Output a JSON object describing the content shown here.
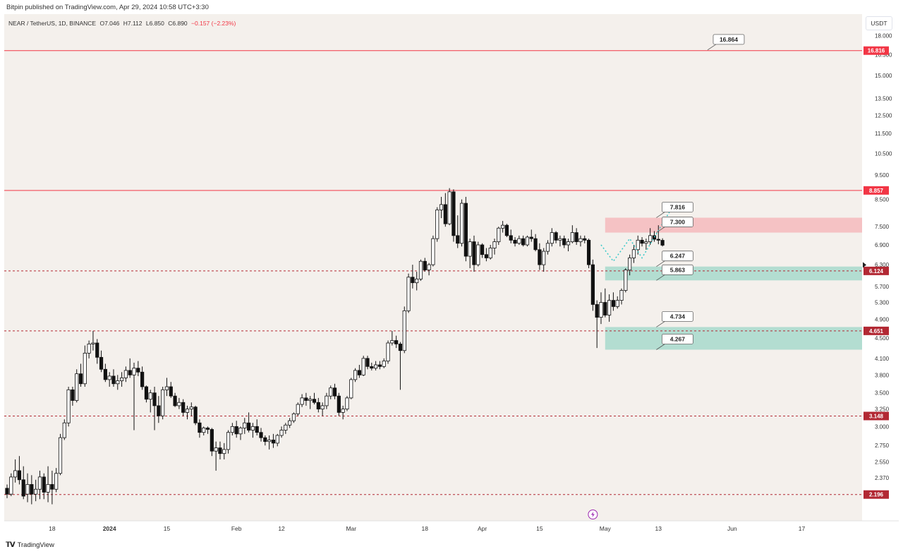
{
  "header": {
    "publish_text": "Bitpin published on TradingView.com, Apr 29, 2024 10:58 UTC+3:30"
  },
  "symbol": {
    "name": "NEAR / TetherUS, 1D, BINANCE",
    "open": "O7.046",
    "high": "H7.112",
    "low": "L6.850",
    "close": "C6.890",
    "change": "−0.157 (−2.23%)",
    "change_color": "#f23645"
  },
  "currency_button": "USDT",
  "footer": {
    "brand": "TradingView",
    "logo_icon": "tradingview-logo-icon"
  },
  "colors": {
    "background": "#f4f0ec",
    "red_line": "#f23645",
    "red_label": "#f23645",
    "dark_red_label": "#b22833",
    "sell_zone": "#f5c2c4",
    "buy_zone": "#b3ddd1",
    "projection": "#36c8c8",
    "candle": "#111111"
  },
  "chart_data": {
    "type": "candlestick",
    "title": "NEAR / TetherUS, 1D, BINANCE",
    "yscale": "log",
    "ylim": [
      2.05,
      19.0
    ],
    "x_tick_labels": [
      "18",
      "2024",
      "15",
      "Feb",
      "12",
      "Mar",
      "18",
      "Apr",
      "15",
      "May",
      "13",
      "Jun",
      "17"
    ],
    "x_tick_days": [
      0,
      14,
      28,
      45,
      56,
      73,
      91,
      105,
      119,
      135,
      148,
      166,
      183
    ],
    "x_range_days": [
      -11,
      196
    ],
    "y_tick_labels": [
      "18.000",
      "16.500",
      "15.000",
      "13.500",
      "12.500",
      "11.500",
      "10.500",
      "9.500",
      "8.500",
      "7.500",
      "6.900",
      "6.300",
      "5.700",
      "5.300",
      "4.900",
      "4.500",
      "4.100",
      "3.800",
      "3.500",
      "3.250",
      "3.000",
      "2.750",
      "2.550",
      "2.370"
    ],
    "horizontal_levels": [
      {
        "label": "16.816",
        "style": "solid",
        "color": "#f23645"
      },
      {
        "label": "8.857",
        "style": "solid",
        "color": "#f23645"
      },
      {
        "label": "6.124",
        "style": "dashed",
        "color": "#b22833"
      },
      {
        "label": "4.651",
        "style": "dashed",
        "color": "#b22833"
      },
      {
        "label": "3.148",
        "style": "dashed",
        "color": "#b22833"
      },
      {
        "label": "2.196",
        "style": "dashed",
        "color": "#b22833"
      }
    ],
    "zones": [
      {
        "type": "sell",
        "top": 7.816,
        "bottom": 7.3,
        "top_label": "7.816",
        "bottom_label": "7.300",
        "start_day": 135
      },
      {
        "type": "buy",
        "top": 6.247,
        "bottom": 5.863,
        "top_label": "6.247",
        "bottom_label": "5.863",
        "start_day": 135
      },
      {
        "type": "buy",
        "top": 4.734,
        "bottom": 4.267,
        "top_label": "4.734",
        "bottom_label": "4.267",
        "start_day": 135
      }
    ],
    "callouts": [
      {
        "label": "16.864",
        "value": 16.864,
        "day": 160
      }
    ],
    "projection": [
      {
        "day": 134,
        "value": 6.9
      },
      {
        "day": 137,
        "value": 6.4
      },
      {
        "day": 141,
        "value": 7.1
      },
      {
        "day": 144,
        "value": 6.5
      },
      {
        "day": 151,
        "value": 8.1
      }
    ],
    "last_price_marker_value": 6.89,
    "candles": [
      [
        -11,
        2.26,
        2.3,
        2.16,
        2.2
      ],
      [
        -10,
        2.2,
        2.42,
        2.18,
        2.38
      ],
      [
        -9,
        2.38,
        2.58,
        2.32,
        2.45
      ],
      [
        -8,
        2.45,
        2.62,
        2.3,
        2.35
      ],
      [
        -7,
        2.35,
        2.5,
        2.15,
        2.18
      ],
      [
        -6,
        2.2,
        2.42,
        2.12,
        2.3
      ],
      [
        -5,
        2.3,
        2.4,
        2.1,
        2.2
      ],
      [
        -4,
        2.2,
        2.35,
        2.13,
        2.25
      ],
      [
        -3,
        2.25,
        2.45,
        2.15,
        2.38
      ],
      [
        -2,
        2.38,
        2.42,
        2.15,
        2.22
      ],
      [
        -1,
        2.22,
        2.5,
        2.12,
        2.3
      ],
      [
        0,
        2.3,
        2.45,
        2.1,
        2.25
      ],
      [
        1,
        2.25,
        2.48,
        2.22,
        2.42
      ],
      [
        2,
        2.42,
        2.9,
        2.4,
        2.85
      ],
      [
        3,
        2.85,
        3.1,
        2.82,
        3.05
      ],
      [
        4,
        3.05,
        3.6,
        3.0,
        3.55
      ],
      [
        5,
        3.55,
        3.6,
        3.3,
        3.38
      ],
      [
        6,
        3.38,
        3.9,
        3.35,
        3.82
      ],
      [
        7,
        3.82,
        4.0,
        3.6,
        3.65
      ],
      [
        8,
        3.65,
        4.35,
        3.6,
        4.2
      ],
      [
        9,
        4.2,
        4.45,
        4.1,
        4.38
      ],
      [
        10,
        4.38,
        4.65,
        4.25,
        4.4
      ],
      [
        11,
        4.4,
        4.48,
        4.0,
        4.12
      ],
      [
        12,
        4.12,
        4.25,
        3.85,
        3.9
      ],
      [
        13,
        3.9,
        4.0,
        3.68,
        3.72
      ],
      [
        14,
        3.72,
        3.85,
        3.6,
        3.78
      ],
      [
        15,
        3.78,
        3.9,
        3.6,
        3.65
      ],
      [
        16,
        3.65,
        3.8,
        3.55,
        3.7
      ],
      [
        17,
        3.7,
        3.85,
        3.6,
        3.75
      ],
      [
        18,
        3.75,
        3.95,
        3.68,
        3.88
      ],
      [
        19,
        3.88,
        4.1,
        3.75,
        3.8
      ],
      [
        20,
        3.8,
        4.02,
        2.95,
        3.92
      ],
      [
        21,
        3.92,
        4.05,
        3.78,
        3.85
      ],
      [
        22,
        3.85,
        3.95,
        3.55,
        3.6
      ],
      [
        23,
        3.6,
        3.62,
        3.35,
        3.4
      ],
      [
        24,
        3.4,
        3.55,
        3.2,
        3.5
      ],
      [
        25,
        3.5,
        3.6,
        2.95,
        3.3
      ],
      [
        26,
        3.3,
        3.45,
        3.05,
        3.15
      ],
      [
        27,
        3.15,
        3.6,
        3.1,
        3.55
      ],
      [
        28,
        3.55,
        3.75,
        3.45,
        3.6
      ],
      [
        29,
        3.6,
        3.68,
        3.42,
        3.45
      ],
      [
        30,
        3.45,
        3.5,
        3.28,
        3.3
      ],
      [
        31,
        3.3,
        3.42,
        3.25,
        3.35
      ],
      [
        32,
        3.35,
        3.4,
        3.15,
        3.2
      ],
      [
        33,
        3.2,
        3.3,
        3.1,
        3.25
      ],
      [
        34,
        3.25,
        3.35,
        3.15,
        3.28
      ],
      [
        35,
        3.28,
        3.3,
        3.02,
        3.05
      ],
      [
        36,
        3.05,
        3.1,
        2.85,
        2.92
      ],
      [
        37,
        2.92,
        3.0,
        2.88,
        2.98
      ],
      [
        38,
        2.98,
        3.0,
        2.9,
        2.96
      ],
      [
        39,
        2.96,
        2.98,
        2.62,
        2.68
      ],
      [
        40,
        2.68,
        2.8,
        2.45,
        2.72
      ],
      [
        41,
        2.72,
        2.8,
        2.58,
        2.65
      ],
      [
        42,
        2.65,
        2.78,
        2.58,
        2.7
      ],
      [
        43,
        2.7,
        2.95,
        2.65,
        2.92
      ],
      [
        44,
        2.92,
        3.05,
        2.88,
        3.0
      ],
      [
        45,
        3.0,
        3.08,
        2.85,
        2.9
      ],
      [
        46,
        2.9,
        3.0,
        2.82,
        2.98
      ],
      [
        47,
        2.98,
        3.12,
        2.9,
        3.05
      ],
      [
        48,
        3.05,
        3.2,
        2.92,
        2.95
      ],
      [
        49,
        2.95,
        3.05,
        2.85,
        3.0
      ],
      [
        50,
        3.0,
        3.1,
        2.88,
        2.92
      ],
      [
        51,
        2.92,
        2.98,
        2.8,
        2.85
      ],
      [
        52,
        2.85,
        2.88,
        2.75,
        2.8
      ],
      [
        53,
        2.8,
        2.88,
        2.7,
        2.82
      ],
      [
        54,
        2.82,
        2.9,
        2.72,
        2.78
      ],
      [
        55,
        2.78,
        2.9,
        2.74,
        2.88
      ],
      [
        56,
        2.88,
        3.0,
        2.85,
        2.95
      ],
      [
        57,
        2.95,
        3.05,
        2.9,
        3.02
      ],
      [
        58,
        3.02,
        3.12,
        2.98,
        3.08
      ],
      [
        59,
        3.08,
        3.2,
        3.05,
        3.18
      ],
      [
        60,
        3.18,
        3.35,
        3.15,
        3.32
      ],
      [
        61,
        3.32,
        3.48,
        3.28,
        3.42
      ],
      [
        62,
        3.42,
        3.5,
        3.3,
        3.38
      ],
      [
        63,
        3.38,
        3.45,
        3.25,
        3.4
      ],
      [
        64,
        3.4,
        3.5,
        3.32,
        3.35
      ],
      [
        65,
        3.35,
        3.42,
        3.2,
        3.25
      ],
      [
        66,
        3.25,
        3.35,
        3.15,
        3.3
      ],
      [
        67,
        3.3,
        3.5,
        3.25,
        3.45
      ],
      [
        68,
        3.45,
        3.62,
        3.4,
        3.58
      ],
      [
        69,
        3.58,
        3.65,
        3.4,
        3.45
      ],
      [
        70,
        3.45,
        3.5,
        3.15,
        3.2
      ],
      [
        71,
        3.2,
        3.3,
        3.1,
        3.25
      ],
      [
        72,
        3.25,
        3.45,
        3.22,
        3.42
      ],
      [
        73,
        3.42,
        3.75,
        3.4,
        3.72
      ],
      [
        74,
        3.72,
        3.92,
        3.68,
        3.88
      ],
      [
        75,
        3.88,
        3.98,
        3.75,
        3.8
      ],
      [
        76,
        3.8,
        4.15,
        3.78,
        4.1
      ],
      [
        77,
        4.1,
        4.15,
        3.9,
        3.95
      ],
      [
        78,
        3.95,
        4.02,
        3.88,
        3.92
      ],
      [
        79,
        3.92,
        4.05,
        3.88,
        3.98
      ],
      [
        80,
        3.98,
        4.05,
        3.9,
        3.95
      ],
      [
        81,
        3.95,
        4.1,
        3.92,
        4.05
      ],
      [
        82,
        4.05,
        4.45,
        4.0,
        4.4
      ],
      [
        83,
        4.4,
        4.65,
        4.35,
        4.45
      ],
      [
        84,
        4.45,
        4.55,
        4.3,
        4.38
      ],
      [
        85,
        4.38,
        4.42,
        3.55,
        4.25
      ],
      [
        86,
        4.25,
        5.2,
        4.2,
        5.1
      ],
      [
        87,
        5.1,
        6.05,
        5.05,
        5.95
      ],
      [
        88,
        5.95,
        6.3,
        5.65,
        5.8
      ],
      [
        89,
        5.8,
        6.1,
        5.6,
        5.9
      ],
      [
        90,
        5.9,
        6.45,
        5.85,
        6.4
      ],
      [
        91,
        6.4,
        6.5,
        6.1,
        6.15
      ],
      [
        92,
        6.15,
        6.35,
        6.0,
        6.3
      ],
      [
        93,
        6.3,
        7.2,
        6.25,
        7.1
      ],
      [
        94,
        7.1,
        8.2,
        7.0,
        8.1
      ],
      [
        95,
        8.1,
        8.6,
        7.8,
        8.3
      ],
      [
        96,
        8.3,
        8.75,
        7.5,
        7.6
      ],
      [
        97,
        7.6,
        8.95,
        7.55,
        8.8
      ],
      [
        98,
        8.8,
        8.9,
        7.0,
        7.2
      ],
      [
        99,
        7.2,
        7.9,
        6.8,
        6.95
      ],
      [
        100,
        6.95,
        8.5,
        6.85,
        8.35
      ],
      [
        101,
        8.35,
        8.6,
        6.4,
        6.55
      ],
      [
        102,
        6.55,
        7.1,
        6.2,
        7.0
      ],
      [
        103,
        7.0,
        7.2,
        6.1,
        6.3
      ],
      [
        104,
        6.3,
        7.0,
        6.25,
        6.9
      ],
      [
        105,
        6.9,
        6.95,
        6.5,
        6.6
      ],
      [
        106,
        6.6,
        6.8,
        6.4,
        6.5
      ],
      [
        107,
        6.5,
        6.9,
        6.45,
        6.8
      ],
      [
        108,
        6.8,
        7.1,
        6.6,
        7.0
      ],
      [
        109,
        7.0,
        7.5,
        6.9,
        7.45
      ],
      [
        110,
        7.45,
        7.7,
        7.3,
        7.55
      ],
      [
        111,
        7.55,
        7.6,
        7.15,
        7.2
      ],
      [
        112,
        7.2,
        7.4,
        6.95,
        7.05
      ],
      [
        113,
        7.05,
        7.15,
        6.85,
        6.95
      ],
      [
        114,
        6.95,
        7.2,
        6.9,
        7.1
      ],
      [
        115,
        7.1,
        7.2,
        6.85,
        6.9
      ],
      [
        116,
        6.9,
        7.2,
        6.85,
        7.15
      ],
      [
        117,
        7.15,
        7.4,
        7.0,
        7.1
      ],
      [
        118,
        7.1,
        7.25,
        6.7,
        6.75
      ],
      [
        119,
        6.75,
        6.95,
        6.15,
        6.3
      ],
      [
        120,
        6.3,
        6.8,
        6.1,
        6.7
      ],
      [
        121,
        6.7,
        7.05,
        6.6,
        6.95
      ],
      [
        122,
        6.95,
        7.45,
        6.85,
        7.3
      ],
      [
        123,
        7.3,
        7.35,
        6.95,
        7.05
      ],
      [
        124,
        7.05,
        7.2,
        6.85,
        7.1
      ],
      [
        125,
        7.1,
        7.2,
        6.8,
        6.9
      ],
      [
        126,
        6.9,
        7.1,
        6.7,
        7.0
      ],
      [
        127,
        7.0,
        7.55,
        6.95,
        7.3
      ],
      [
        128,
        7.3,
        7.45,
        6.9,
        7.0
      ],
      [
        129,
        7.0,
        7.2,
        6.85,
        7.1
      ],
      [
        130,
        7.1,
        7.2,
        6.95,
        7.05
      ],
      [
        131,
        7.05,
        7.1,
        6.2,
        6.3
      ],
      [
        132,
        6.3,
        6.45,
        5.1,
        5.25
      ],
      [
        133,
        5.25,
        5.35,
        4.3,
        4.95
      ],
      [
        134,
        4.95,
        5.55,
        4.8,
        5.3
      ],
      [
        135,
        5.3,
        5.65,
        4.95,
        5.0
      ],
      [
        136,
        5.0,
        5.5,
        4.85,
        5.35
      ],
      [
        137,
        5.35,
        5.55,
        5.1,
        5.2
      ],
      [
        138,
        5.2,
        5.45,
        5.15,
        5.35
      ],
      [
        139,
        5.35,
        5.65,
        5.25,
        5.6
      ],
      [
        140,
        5.6,
        6.2,
        5.55,
        6.15
      ],
      [
        141,
        6.15,
        6.6,
        6.0,
        6.5
      ],
      [
        142,
        6.5,
        6.9,
        6.35,
        6.75
      ],
      [
        143,
        6.75,
        7.2,
        6.6,
        7.05
      ],
      [
        144,
        7.05,
        7.15,
        6.85,
        6.95
      ],
      [
        145,
        6.95,
        7.1,
        6.75,
        7.0
      ],
      [
        146,
        7.0,
        7.45,
        6.9,
        7.2
      ],
      [
        147,
        7.2,
        7.35,
        7.0,
        7.08
      ],
      [
        148,
        7.08,
        7.55,
        6.92,
        7.05
      ],
      [
        149,
        7.046,
        7.112,
        6.85,
        6.89
      ]
    ]
  }
}
